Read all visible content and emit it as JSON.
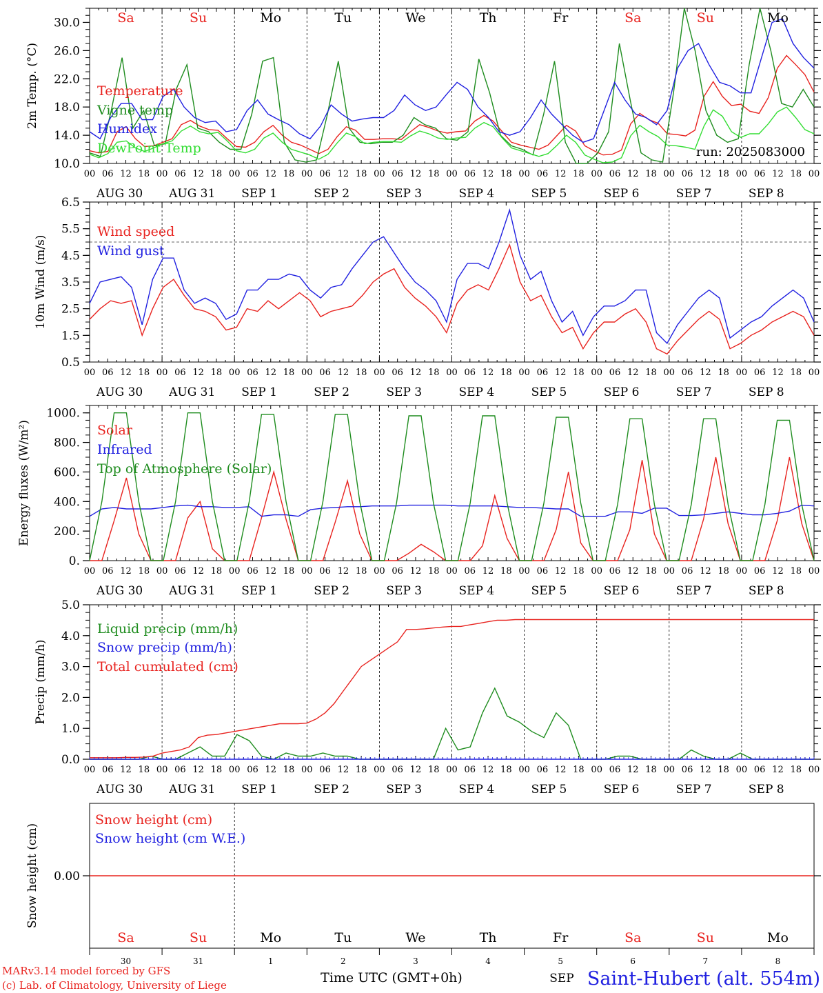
{
  "run_label": "run: 2025083000",
  "station": "Saint-Hubert (alt. 554m)",
  "credit_line1": "MARv3.14 model forced by GFS",
  "credit_line2": "(c) Lab. of Climatology, University of Liege",
  "xlabel": "Time UTC (GMT+0h)",
  "month_label": "SEP",
  "hour_ticks": [
    "00",
    "06",
    "12",
    "18"
  ],
  "date_labels": [
    "AUG 30",
    "AUG 31",
    "SEP  1",
    "SEP  2",
    "SEP  3",
    "SEP  4",
    "SEP  5",
    "SEP  6",
    "SEP  7",
    "SEP  8"
  ],
  "weekdays": [
    "Sa",
    "Su",
    "Mo",
    "Tu",
    "We",
    "Th",
    "Fr",
    "Sa",
    "Su",
    "Mo"
  ],
  "day_numbers": [
    "30",
    "31",
    "1",
    "2",
    "3",
    "4",
    "5",
    "6",
    "7",
    "8"
  ],
  "colors": {
    "weekend": "#e8231f",
    "weekday": "#000000",
    "red": "#e8231f",
    "green": "#1e8c1e",
    "blue": "#2020e0",
    "lightgreen": "#33dd33"
  },
  "chart_data": [
    {
      "type": "line",
      "ylabel": "2m Temp. (°C)",
      "ylim": [
        10,
        32
      ],
      "yticks": [
        "10.0",
        "14.0",
        "18.0",
        "22.0",
        "26.0",
        "30.0"
      ],
      "x": "hours since AUG 30 00 UTC, 3-hourly",
      "series": [
        {
          "name": "Temperature",
          "color": "red",
          "values": [
            11.8,
            11.5,
            11.7,
            14.5,
            15.2,
            13.5,
            12.4,
            12.5,
            13.0,
            13.5,
            15.5,
            16.1,
            15.3,
            14.8,
            14.7,
            13.5,
            12.4,
            12.3,
            13.0,
            14.5,
            15.4,
            14.0,
            13.0,
            12.6,
            12.0,
            11.4,
            12.0,
            13.8,
            15.2,
            14.7,
            13.4,
            13.4,
            13.5,
            13.5,
            13.4,
            14.5,
            15.5,
            15.1,
            14.6,
            14.3,
            14.5,
            14.6,
            16.0,
            16.8,
            16.0,
            14.5,
            13.0,
            12.6,
            12.3,
            12.0,
            12.6,
            14.0,
            15.4,
            14.6,
            12.5,
            11.8,
            11.2,
            11.3,
            11.9,
            15.6,
            17.1,
            16.2,
            15.7,
            14.2,
            14.1,
            13.9,
            14.7,
            19.5,
            21.6,
            19.5,
            18.2,
            18.4,
            17.4,
            17.1,
            19.3,
            23.5,
            25.3,
            24.0,
            22.6,
            20.1
          ]
        },
        {
          "name": "Vigne temp",
          "color": "green",
          "values": [
            11.5,
            11.0,
            17.5,
            25.0,
            15.0,
            17.5,
            12.5,
            12.8,
            20.5,
            24.0,
            15.0,
            14.5,
            13.0,
            12.0,
            12.0,
            17.0,
            24.5,
            25.0,
            13.0,
            10.5,
            10.2,
            10.5,
            17.0,
            24.5,
            15.0,
            13.0,
            12.8,
            13.0,
            13.0,
            14.0,
            16.5,
            15.5,
            15.0,
            13.5,
            13.3,
            14.5,
            24.8,
            20.0,
            14.0,
            12.5,
            12.0,
            11.2,
            17.0,
            24.5,
            13.0,
            9.8,
            9.8,
            11.5,
            14.5,
            27.0,
            19.0,
            11.5,
            10.5,
            10.2,
            20.0,
            32.5,
            26.0,
            17.5,
            14.0,
            13.0,
            13.5,
            24.0,
            32.5,
            26.0,
            18.5,
            18.0,
            20.5,
            18.0
          ]
        },
        {
          "name": "Humidex",
          "color": "blue",
          "values": [
            14.5,
            13.5,
            16.5,
            18.5,
            18.5,
            16.2,
            16.2,
            19.5,
            20.5,
            18.0,
            16.5,
            15.8,
            16.0,
            14.5,
            14.8,
            17.5,
            19.0,
            17.0,
            16.2,
            15.5,
            14.2,
            13.5,
            15.3,
            18.3,
            17.0,
            16.0,
            16.3,
            16.5,
            16.5,
            17.5,
            19.7,
            18.3,
            17.5,
            18.0,
            19.8,
            21.5,
            20.5,
            18.0,
            16.5,
            14.5,
            14.0,
            14.5,
            16.5,
            19.0,
            17.0,
            15.5,
            14.0,
            13.0,
            13.5,
            17.5,
            21.5,
            19.0,
            17.0,
            16.5,
            15.5,
            17.5,
            23.5,
            26.0,
            27.0,
            24.0,
            21.5,
            21.0,
            20.0,
            20.0,
            25.0,
            30.0,
            30.5,
            27.0,
            25.0,
            23.5
          ]
        },
        {
          "name": "DewPoint Temp",
          "color": "lightgreen",
          "values": [
            11.3,
            10.8,
            11.4,
            13.0,
            13.2,
            12.2,
            11.7,
            12.2,
            12.8,
            13.2,
            14.6,
            15.3,
            14.5,
            14.2,
            14.4,
            13.2,
            11.8,
            11.5,
            12.0,
            13.6,
            14.3,
            13.0,
            12.0,
            11.6,
            11.2,
            10.6,
            11.3,
            12.9,
            14.3,
            13.8,
            12.8,
            13.0,
            13.1,
            13.1,
            13.0,
            13.9,
            14.6,
            14.2,
            13.6,
            13.4,
            13.6,
            13.7,
            15.0,
            15.8,
            15.2,
            13.6,
            12.2,
            11.8,
            11.4,
            11.0,
            11.4,
            12.6,
            14.0,
            13.0,
            11.2,
            10.6,
            10.1,
            10.2,
            10.8,
            13.9,
            15.4,
            14.5,
            13.8,
            12.6,
            12.5,
            12.3,
            12.0,
            15.3,
            17.6,
            16.7,
            14.5,
            13.7,
            14.2,
            14.2,
            15.6,
            17.3,
            18.0,
            16.5,
            14.8,
            14.2
          ]
        }
      ]
    },
    {
      "type": "line",
      "ylabel": "10m Wind (m/s)",
      "ylim": [
        0.5,
        6.5
      ],
      "yticks": [
        "0.5",
        "1.5",
        "2.5",
        "3.5",
        "4.5",
        "5.5",
        "6.5"
      ],
      "reference_line": 5.0,
      "x": "hours since AUG 30 00 UTC, 3-hourly",
      "series": [
        {
          "name": "Wind speed",
          "color": "red",
          "values": [
            2.1,
            2.5,
            2.8,
            2.7,
            2.8,
            1.5,
            2.5,
            3.3,
            3.6,
            3.0,
            2.5,
            2.4,
            2.2,
            1.7,
            1.8,
            2.5,
            2.4,
            2.8,
            2.5,
            2.8,
            3.1,
            2.8,
            2.2,
            2.4,
            2.5,
            2.6,
            3.0,
            3.5,
            3.8,
            4.0,
            3.3,
            2.9,
            2.6,
            2.2,
            1.6,
            2.7,
            3.2,
            3.4,
            3.2,
            4.0,
            4.9,
            3.5,
            2.8,
            3.0,
            2.2,
            1.6,
            1.8,
            1.0,
            1.6,
            2.0,
            2.0,
            2.3,
            2.5,
            2.0,
            1.0,
            0.8,
            1.3,
            1.7,
            2.1,
            2.4,
            2.1,
            1.0,
            1.2,
            1.5,
            1.7,
            2.0,
            2.2,
            2.4,
            2.2,
            1.5
          ]
        },
        {
          "name": "Wind gust",
          "color": "blue",
          "values": [
            2.7,
            3.5,
            3.6,
            3.7,
            3.3,
            1.9,
            3.6,
            4.4,
            4.4,
            3.2,
            2.7,
            2.9,
            2.7,
            2.1,
            2.3,
            3.2,
            3.2,
            3.6,
            3.6,
            3.8,
            3.7,
            3.2,
            2.9,
            3.3,
            3.4,
            4.0,
            4.5,
            5.0,
            5.2,
            4.6,
            4.0,
            3.5,
            3.2,
            2.8,
            2.0,
            3.6,
            4.2,
            4.2,
            4.0,
            5.0,
            6.2,
            4.5,
            3.6,
            3.9,
            2.8,
            2.0,
            2.4,
            1.5,
            2.2,
            2.6,
            2.6,
            2.8,
            3.2,
            3.2,
            1.6,
            1.2,
            1.9,
            2.4,
            2.9,
            3.2,
            2.9,
            1.4,
            1.7,
            2.0,
            2.2,
            2.6,
            2.9,
            3.2,
            2.9,
            2.0
          ]
        }
      ]
    },
    {
      "type": "line",
      "ylabel": "Energy fluxes (W/m²)",
      "ylim": [
        0,
        1050
      ],
      "yticks": [
        "0.",
        "200.",
        "400.",
        "600.",
        "800.",
        "1000."
      ],
      "x": "hours since AUG 30 00 UTC, 3-hourly",
      "series": [
        {
          "name": "Solar",
          "color": "red",
          "values": [
            0,
            0,
            270,
            560,
            180,
            0,
            0,
            0,
            290,
            400,
            80,
            0,
            0,
            0,
            290,
            600,
            280,
            0,
            0,
            0,
            260,
            540,
            180,
            0,
            0,
            0,
            50,
            110,
            60,
            0,
            0,
            0,
            100,
            440,
            150,
            0,
            0,
            0,
            210,
            600,
            120,
            0,
            0,
            0,
            210,
            680,
            180,
            0,
            0,
            0,
            280,
            700,
            250,
            0,
            0,
            0,
            270,
            700,
            250,
            0
          ]
        },
        {
          "name": "Infrared",
          "color": "blue",
          "values": [
            300,
            350,
            360,
            350,
            350,
            350,
            360,
            370,
            375,
            365,
            365,
            360,
            360,
            365,
            300,
            310,
            310,
            300,
            345,
            355,
            360,
            365,
            365,
            370,
            370,
            370,
            375,
            375,
            375,
            375,
            370,
            370,
            370,
            370,
            365,
            360,
            360,
            355,
            350,
            350,
            300,
            300,
            300,
            330,
            330,
            320,
            355,
            355,
            305,
            305,
            310,
            320,
            330,
            320,
            310,
            310,
            320,
            335,
            375,
            370
          ]
        },
        {
          "name": "Top of Atmosphere (Solar)",
          "color": "green",
          "values": [
            0,
            400,
            1000,
            1000,
            400,
            0,
            0,
            400,
            1000,
            1000,
            400,
            0,
            0,
            400,
            990,
            990,
            400,
            0,
            0,
            400,
            990,
            990,
            400,
            0,
            0,
            390,
            980,
            980,
            390,
            0,
            0,
            390,
            980,
            980,
            390,
            0,
            0,
            390,
            970,
            970,
            390,
            0,
            0,
            380,
            960,
            960,
            380,
            0,
            0,
            380,
            960,
            960,
            380,
            0,
            0,
            380,
            950,
            950,
            380,
            0
          ]
        }
      ]
    },
    {
      "type": "line",
      "ylabel": "Precip (mm/h)",
      "ylim": [
        0,
        5
      ],
      "yticks": [
        "0.0",
        "1.0",
        "2.0",
        "3.0",
        "4.0",
        "5.0"
      ],
      "x": "hours since AUG 30 00 UTC, 3-hourly",
      "series": [
        {
          "name": "Liquid precip (mm/h)",
          "color": "green",
          "values": [
            0,
            0,
            0,
            0,
            0,
            0.1,
            0,
            0,
            0.2,
            0.4,
            0.1,
            0.1,
            0.8,
            0.6,
            0.1,
            0,
            0.2,
            0.1,
            0.1,
            0.2,
            0.1,
            0.1,
            0,
            0,
            0,
            0,
            0,
            0,
            0,
            1.0,
            0.3,
            0.4,
            1.5,
            2.3,
            1.4,
            1.2,
            0.9,
            0.7,
            1.5,
            1.1,
            0,
            0,
            0,
            0.1,
            0.1,
            0,
            0,
            0,
            0,
            0.3,
            0.1,
            0,
            0,
            0.2,
            0,
            0,
            0,
            0,
            0,
            0
          ]
        },
        {
          "name": "Snow precip (mm/h)",
          "color": "blue",
          "values": [
            0,
            0,
            0,
            0,
            0,
            0,
            0,
            0,
            0,
            0,
            0,
            0,
            0,
            0,
            0,
            0,
            0,
            0,
            0,
            0,
            0,
            0,
            0,
            0,
            0,
            0,
            0,
            0,
            0,
            0,
            0,
            0,
            0,
            0,
            0,
            0,
            0,
            0,
            0,
            0,
            0,
            0,
            0,
            0,
            0,
            0,
            0,
            0,
            0,
            0,
            0,
            0,
            0,
            0,
            0,
            0,
            0,
            0,
            0,
            0
          ]
        },
        {
          "name": "Total cumulated (cm)",
          "color": "red",
          "values": [
            0.05,
            0.05,
            0.05,
            0.05,
            0.06,
            0.06,
            0.07,
            0.1,
            0.2,
            0.25,
            0.3,
            0.4,
            0.7,
            0.78,
            0.8,
            0.85,
            0.9,
            0.95,
            1.0,
            1.05,
            1.1,
            1.15,
            1.15,
            1.15,
            1.17,
            1.3,
            1.5,
            1.8,
            2.2,
            2.6,
            3.0,
            3.2,
            3.4,
            3.6,
            3.8,
            4.2,
            4.2,
            4.22,
            4.25,
            4.28,
            4.3,
            4.3,
            4.35,
            4.4,
            4.45,
            4.5,
            4.5,
            4.52,
            4.52,
            4.52,
            4.52,
            4.52,
            4.52,
            4.52,
            4.52,
            4.52,
            4.52,
            4.52,
            4.52,
            4.52,
            4.52,
            4.52,
            4.52,
            4.52,
            4.52,
            4.52,
            4.52,
            4.52,
            4.52,
            4.52,
            4.52,
            4.52,
            4.52,
            4.52,
            4.52,
            4.52,
            4.52,
            4.52,
            4.52,
            4.52,
            4.52
          ]
        }
      ]
    },
    {
      "type": "line",
      "ylabel": "Snow height (cm)",
      "yticks": [
        "0.00"
      ],
      "series": [
        {
          "name": "Snow height (cm)",
          "color": "red",
          "values": [
            0,
            0
          ]
        },
        {
          "name": "Snow height (cm W.E.)",
          "color": "blue",
          "values": []
        }
      ]
    }
  ]
}
